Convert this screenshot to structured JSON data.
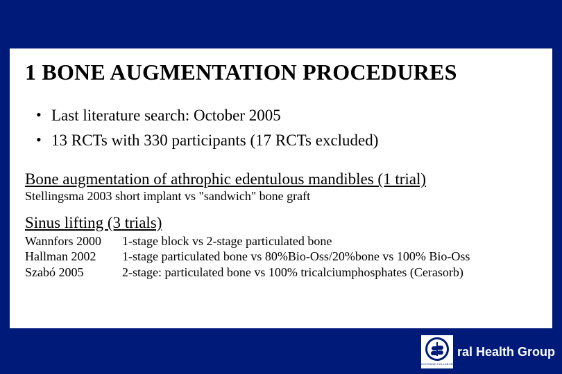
{
  "slide": {
    "background_color": "#001a7a",
    "card_background": "#ffffff",
    "text_color": "#000000",
    "title": "1 BONE AUGMENTATION PROCEDURES",
    "title_fontsize": 32,
    "bullets": [
      "Last literature search: October 2005",
      "13 RCTs with 330 participants (17 RCTs excluded)"
    ],
    "bullet_fontsize": 23,
    "sections": [
      {
        "heading": "Bone augmentation of athrophic edentulous mandibles (1 trial)",
        "details": [
          "Stellingsma 2003 short implant vs \"sandwich\" bone graft"
        ]
      },
      {
        "heading": "Sinus lifting (3 trials)",
        "trials": [
          {
            "author": "Wannfors 2000",
            "desc": "1-stage block vs 2-stage particulated bone"
          },
          {
            "author": "Hallman 2002",
            "desc": "1-stage particulated bone vs 80%Bio-Oss/20%bone vs 100% Bio-Oss"
          },
          {
            "author": "Szabó 2005",
            "desc": "2-stage: particulated bone vs 100% tricalciumphosphates (Cerasorb)"
          }
        ]
      }
    ],
    "heading_fontsize": 23,
    "detail_fontsize": 18
  },
  "footer": {
    "label": "ral Health Group",
    "label_color": "#ffffff",
    "logo_caption": "THE COCHRANE COLLABORATION",
    "logo_border_color": "#001a7a"
  }
}
